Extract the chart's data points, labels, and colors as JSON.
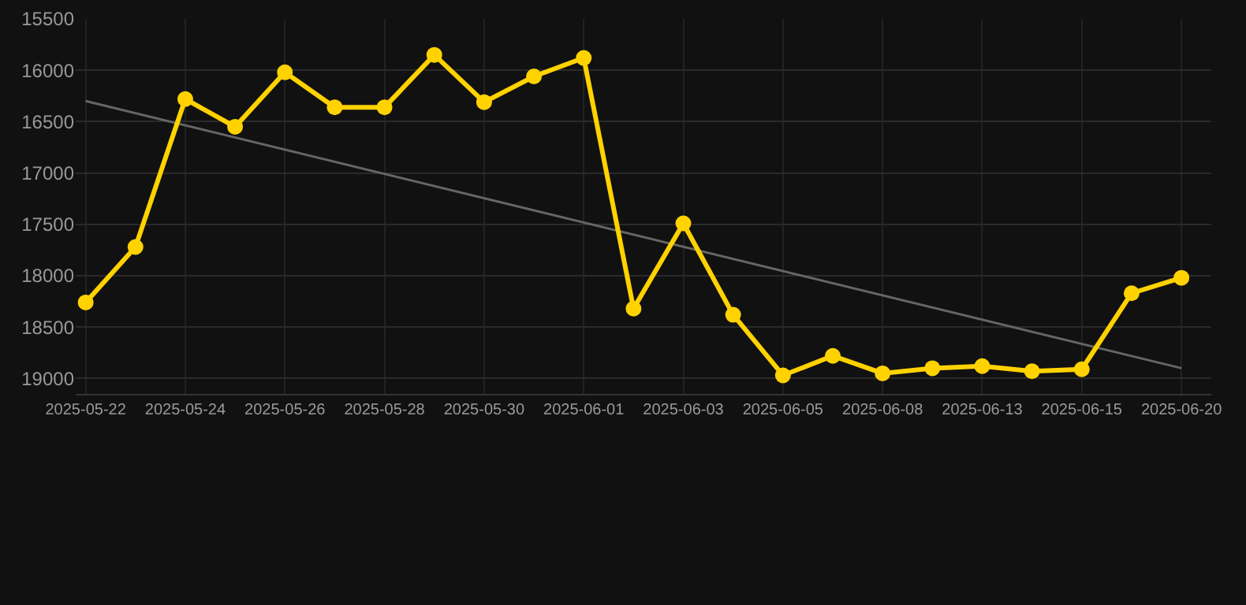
{
  "chart_data": {
    "type": "line",
    "categories": [
      "2025-05-22",
      null,
      "2025-05-24",
      null,
      "2025-05-26",
      null,
      "2025-05-28",
      null,
      "2025-05-30",
      null,
      "2025-06-01",
      null,
      "2025-06-03",
      null,
      "2025-06-05",
      null,
      "2025-06-08",
      null,
      "2025-06-13",
      null,
      "2025-06-15",
      null,
      "2025-06-20"
    ],
    "series": [
      {
        "color": "#ffd200",
        "marker": "circle",
        "values": [
          18260,
          17720,
          16280,
          16550,
          16020,
          16360,
          16360,
          15850,
          16310,
          16060,
          15880,
          18320,
          17490,
          18380,
          18970,
          18780,
          18950,
          18900,
          18880,
          18930,
          18910,
          18170,
          18020
        ]
      },
      {
        "color": "#666666",
        "marker": "none",
        "values": [
          16300,
          null,
          null,
          null,
          null,
          null,
          null,
          null,
          null,
          null,
          null,
          null,
          null,
          null,
          null,
          null,
          null,
          null,
          null,
          null,
          null,
          null,
          18900
        ]
      }
    ],
    "ylim": [
      19150,
      15500
    ],
    "yticks": [
      15500,
      16000,
      16500,
      17000,
      17500,
      18000,
      18500,
      19000
    ],
    "grid": true
  }
}
